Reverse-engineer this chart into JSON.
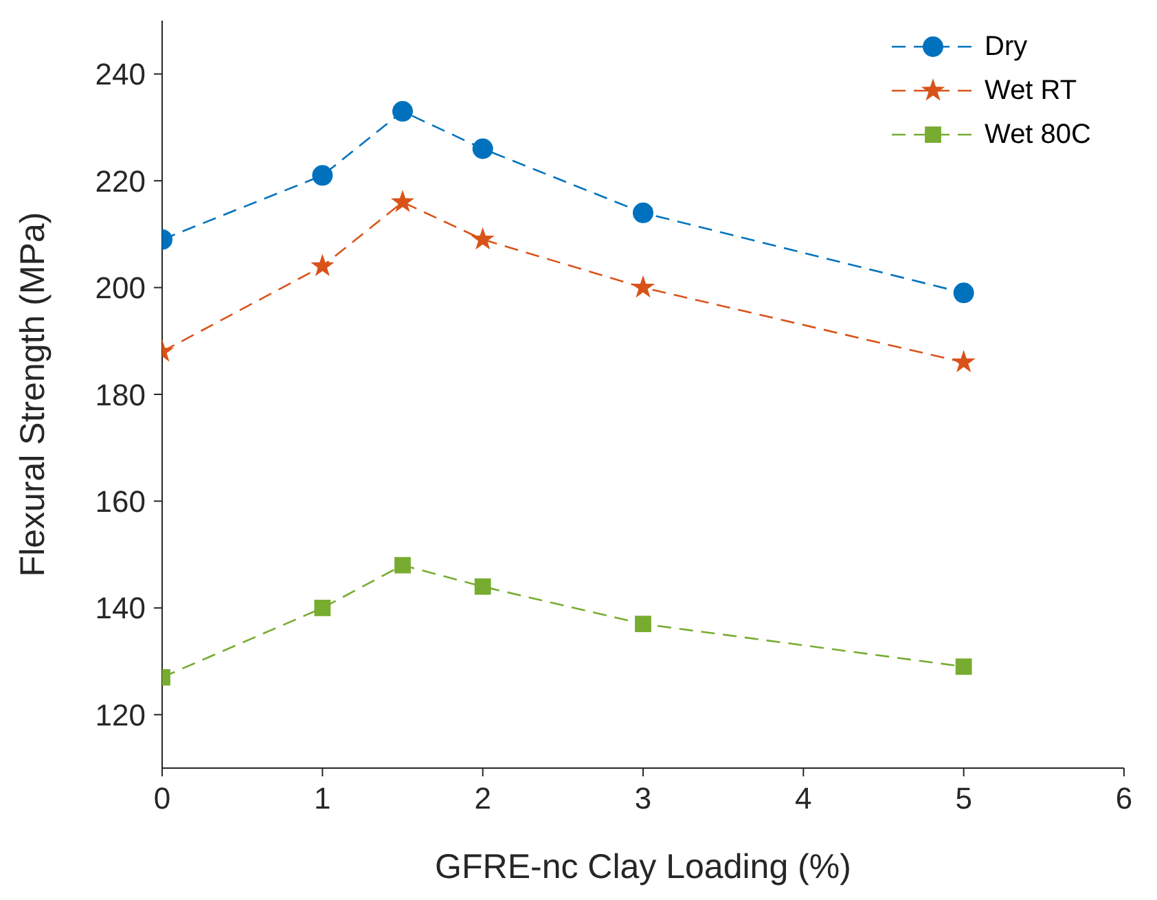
{
  "chart_data": {
    "type": "line",
    "xlabel": "GFRE-nc Clay Loading (%)",
    "ylabel": "Flexural Strength (MPa)",
    "x": [
      0,
      1,
      1.5,
      2,
      3,
      5
    ],
    "series": [
      {
        "name": "Dry",
        "color": "#0072bd",
        "marker": "circle",
        "values": [
          209,
          221,
          233,
          226,
          214,
          199
        ]
      },
      {
        "name": "Wet RT",
        "color": "#d95319",
        "marker": "star",
        "values": [
          188,
          204,
          216,
          209,
          200,
          186
        ]
      },
      {
        "name": "Wet 80C",
        "color": "#77ac30",
        "marker": "square",
        "values": [
          127,
          140,
          148,
          144,
          137,
          129
        ]
      }
    ],
    "xlim": [
      0,
      6
    ],
    "xticks": [
      0,
      1,
      2,
      3,
      4,
      5,
      6
    ],
    "ylim": [
      110,
      250
    ],
    "yticks": [
      120,
      140,
      160,
      180,
      200,
      220,
      240
    ],
    "line_style": "dashed",
    "grid": false,
    "legend": "top right"
  }
}
